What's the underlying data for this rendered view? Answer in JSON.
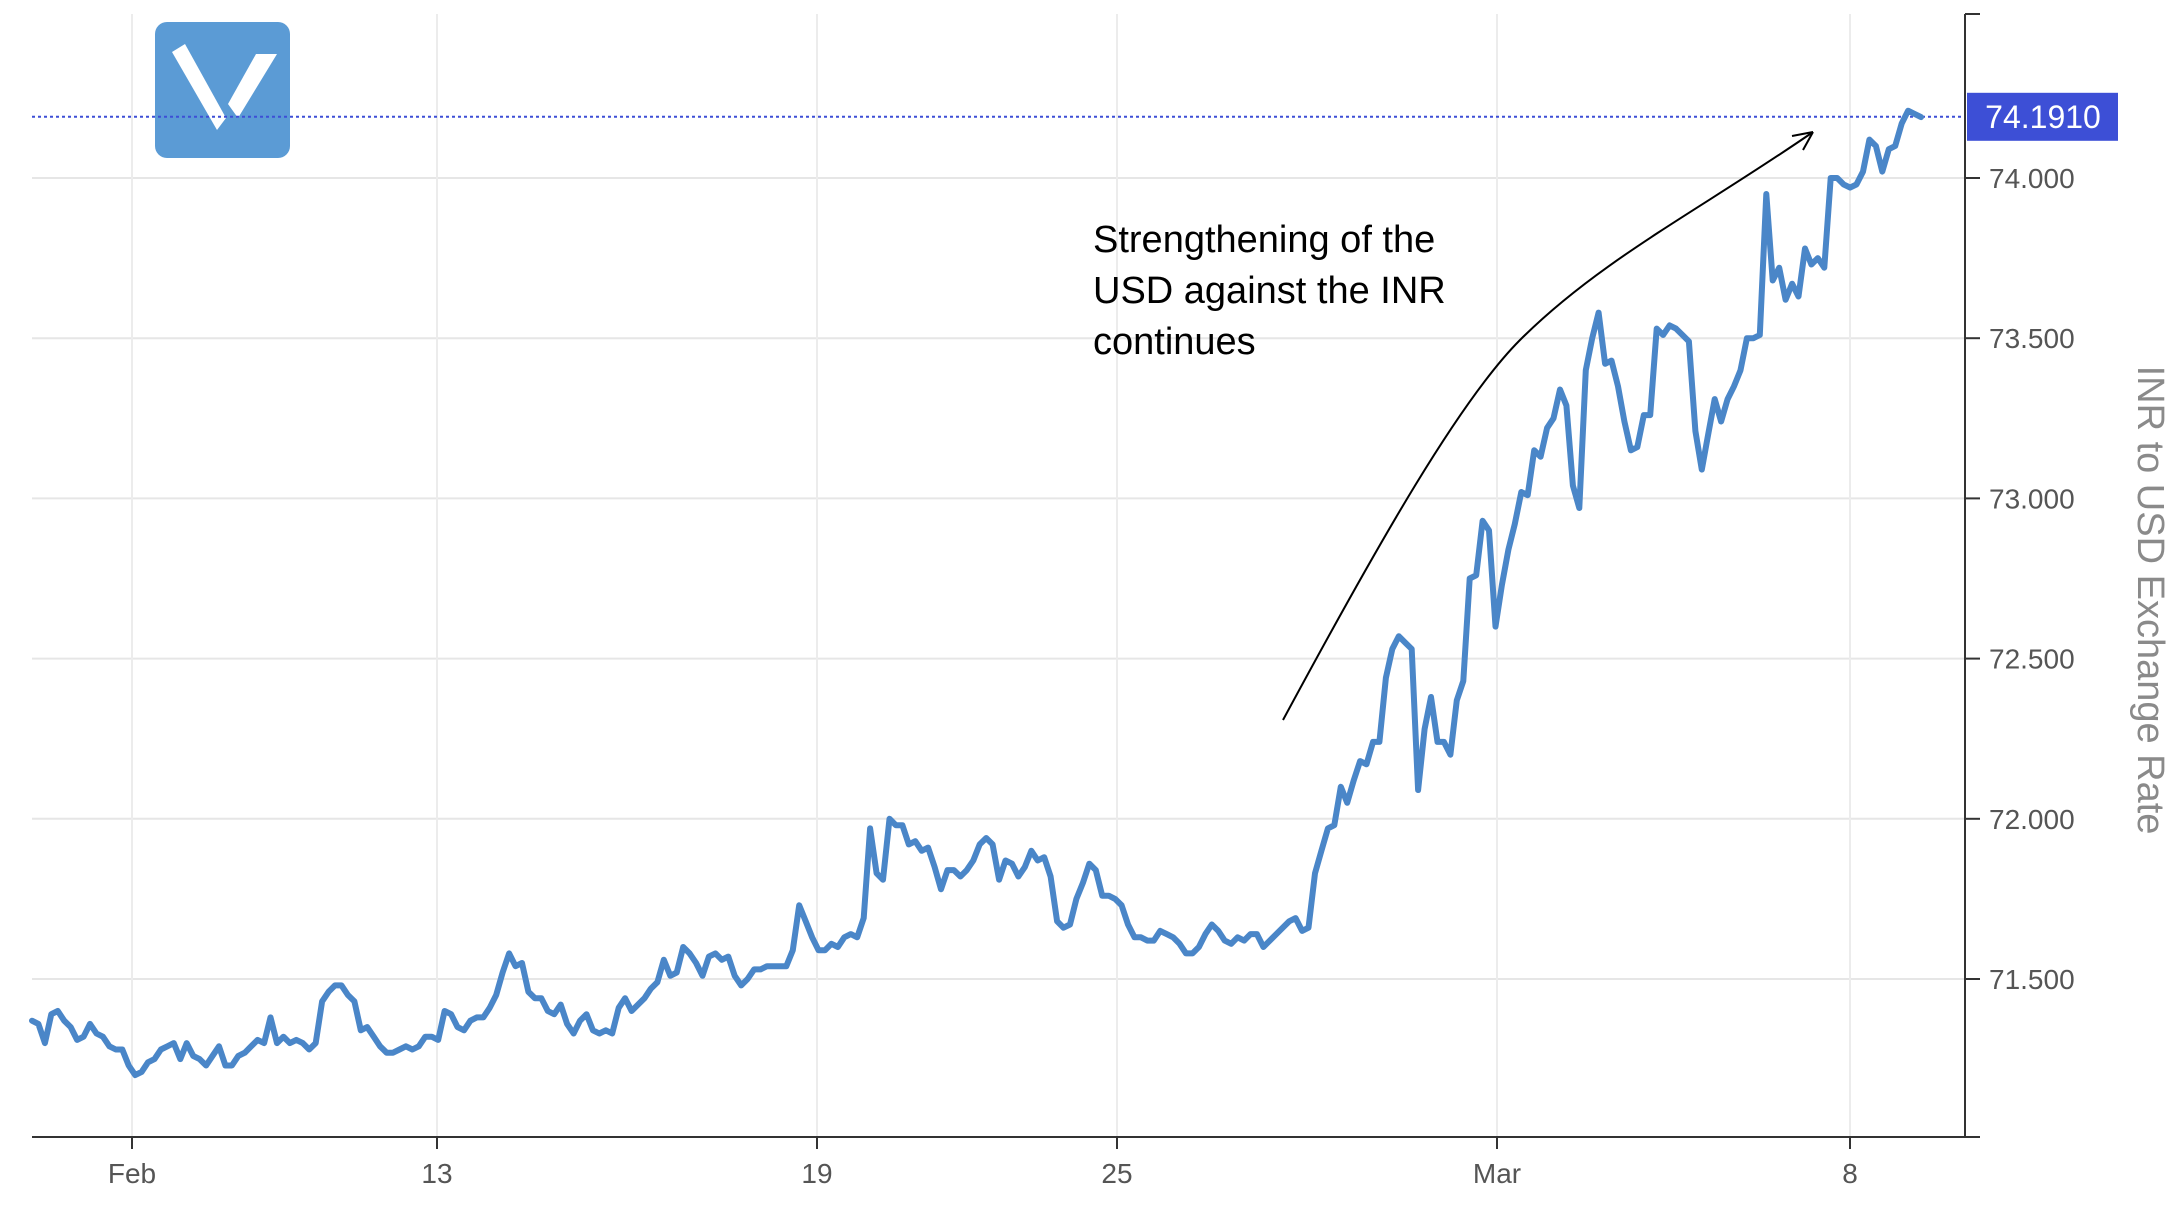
{
  "logo": {
    "name": "V-logo-icon",
    "color": "#5b9bd5"
  },
  "chart_data": {
    "type": "line",
    "title": "",
    "xlabel": "",
    "ylabel": "INR to USD Exchange Rate",
    "ylim": [
      71.0,
      74.5
    ],
    "y_ticks": [
      "71.500",
      "72.000",
      "72.500",
      "73.000",
      "73.500",
      "74.000"
    ],
    "x_ticks": [
      "Feb",
      "13",
      "19",
      "25",
      "Mar",
      "8"
    ],
    "grid": true,
    "line_color": "#4a86c8",
    "current_value": {
      "label": "74.1910",
      "value": 74.191,
      "color": "#3d4fd6"
    },
    "annotation": "Strengthening of the\nUSD against the INR\ncontinues",
    "series": [
      {
        "values": [
          71.37,
          71.36,
          71.3,
          71.39,
          71.4,
          71.37,
          71.35,
          71.31,
          71.32,
          71.36,
          71.33,
          71.32,
          71.29,
          71.28,
          71.28,
          71.23,
          71.2,
          71.21,
          71.24,
          71.25,
          71.28,
          71.29,
          71.3,
          71.25,
          71.3,
          71.26,
          71.25,
          71.23,
          71.26,
          71.29,
          71.23,
          71.23,
          71.26,
          71.27,
          71.29,
          71.31,
          71.3,
          71.38,
          71.3,
          71.32,
          71.3,
          71.31,
          71.3,
          71.28,
          71.3,
          71.43,
          71.46,
          71.48,
          71.48,
          71.45,
          71.43,
          71.34,
          71.35,
          71.32,
          71.29,
          71.27,
          71.27,
          71.28,
          71.29,
          71.28,
          71.29,
          71.32,
          71.32,
          71.31,
          71.4,
          71.39,
          71.35,
          71.34,
          71.37,
          71.38,
          71.38,
          71.41,
          71.45,
          71.52,
          71.58,
          71.54,
          71.55,
          71.46,
          71.44,
          71.44,
          71.4,
          71.39,
          71.42,
          71.36,
          71.33,
          71.37,
          71.39,
          71.34,
          71.33,
          71.34,
          71.33,
          71.41,
          71.44,
          71.4,
          71.42,
          71.44,
          71.47,
          71.49,
          71.56,
          71.51,
          71.52,
          71.6,
          71.58,
          71.55,
          71.51,
          71.57,
          71.58,
          71.56,
          71.57,
          71.51,
          71.48,
          71.5,
          71.53,
          71.53,
          71.54,
          71.54,
          71.54,
          71.54,
          71.59,
          71.73,
          71.68,
          71.63,
          71.59,
          71.59,
          71.61,
          71.6,
          71.63,
          71.64,
          71.63,
          71.69,
          71.97,
          71.83,
          71.81,
          72.0,
          71.98,
          71.98,
          71.92,
          71.93,
          71.9,
          71.91,
          71.85,
          71.78,
          71.84,
          71.84,
          71.82,
          71.84,
          71.87,
          71.92,
          71.94,
          71.92,
          71.81,
          71.87,
          71.86,
          71.82,
          71.85,
          71.9,
          71.87,
          71.88,
          71.82,
          71.68,
          71.66,
          71.67,
          71.75,
          71.8,
          71.86,
          71.84,
          71.76,
          71.76,
          71.75,
          71.73,
          71.67,
          71.63,
          71.63,
          71.62,
          71.62,
          71.65,
          71.64,
          71.63,
          71.61,
          71.58,
          71.58,
          71.6,
          71.64,
          71.67,
          71.65,
          71.62,
          71.61,
          71.63,
          71.62,
          71.64,
          71.64,
          71.6,
          71.62,
          71.64,
          71.66,
          71.68,
          71.69,
          71.65,
          71.66,
          71.83,
          71.9,
          71.97,
          71.98,
          72.1,
          72.05,
          72.12,
          72.18,
          72.17,
          72.24,
          72.24,
          72.44,
          72.53,
          72.57,
          72.55,
          72.53,
          72.09,
          72.28,
          72.38,
          72.24,
          72.24,
          72.2,
          72.37,
          72.43,
          72.75,
          72.76,
          72.93,
          72.9,
          72.6,
          72.73,
          72.84,
          72.92,
          73.02,
          73.01,
          73.15,
          73.13,
          73.22,
          73.25,
          73.34,
          73.29,
          73.04,
          72.97,
          73.4,
          73.5,
          73.58,
          73.42,
          73.43,
          73.35,
          73.24,
          73.15,
          73.16,
          73.26,
          73.26,
          73.53,
          73.51,
          73.54,
          73.53,
          73.51,
          73.49,
          73.21,
          73.09,
          73.2,
          73.31,
          73.24,
          73.31,
          73.35,
          73.4,
          73.5,
          73.5,
          73.51,
          73.95,
          73.68,
          73.72,
          73.62,
          73.67,
          73.63,
          73.78,
          73.73,
          73.75,
          73.72,
          74.0,
          74.0,
          73.98,
          73.97,
          73.98,
          74.02,
          74.12,
          74.1,
          74.02,
          74.09,
          74.1,
          74.17,
          74.21,
          74.2,
          74.19
        ]
      }
    ]
  }
}
